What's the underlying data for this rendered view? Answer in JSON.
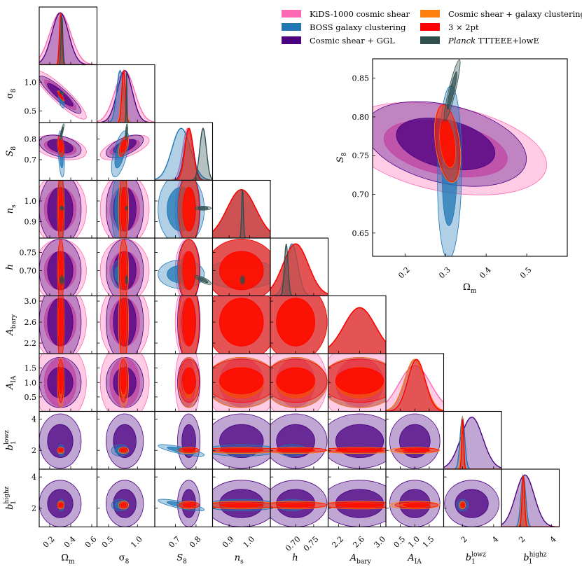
{
  "chart_data": {
    "type": "corner",
    "legend": {
      "placement": "top-right",
      "entries": [
        {
          "label": "KiDS-1000 cosmic shear",
          "color": "#ff69b4"
        },
        {
          "label": "Cosmic shear + galaxy clustering",
          "color": "#ff7f0e"
        },
        {
          "label": "BOSS galaxy clustering",
          "color": "#1f77b4"
        },
        {
          "label": "3 × 2pt",
          "color": "#ff0000"
        },
        {
          "label": "Cosmic shear + GGL",
          "color": "#4b0082"
        },
        {
          "label": "Planck TTTEEE+lowE",
          "color": "#2f4f4f",
          "italic_prefix": "Planck",
          "suffix": " TTTEEE+lowE"
        }
      ]
    },
    "parameters": [
      {
        "key": "Om",
        "label_base": "Ω",
        "label_sub": "m",
        "range": [
          0.1,
          0.65
        ],
        "ticks": [
          0.2,
          0.4,
          0.6
        ],
        "tick_labels": [
          "0.2",
          "0.4",
          "0.6"
        ]
      },
      {
        "key": "s8",
        "label_base": "σ",
        "label_sub": "8",
        "range": [
          0.3,
          1.3
        ],
        "ticks": [
          0.5,
          1.0
        ],
        "tick_labels": [
          "0.5",
          "1.0"
        ]
      },
      {
        "key": "S8",
        "label_base": "S",
        "label_sub": "8",
        "range": [
          0.6,
          0.88
        ],
        "ticks": [
          0.7,
          0.8
        ],
        "tick_labels": [
          "0.7",
          "0.8"
        ]
      },
      {
        "key": "ns",
        "label_base": "n",
        "label_sub": "s",
        "range": [
          0.82,
          1.1
        ],
        "ticks": [
          0.9,
          1.0
        ],
        "tick_labels": [
          "0.9",
          "1.0"
        ]
      },
      {
        "key": "h",
        "label_base": "h",
        "label_sub": "",
        "range": [
          0.63,
          0.79
        ],
        "ticks": [
          0.7,
          0.75
        ],
        "tick_labels": [
          "0.70",
          "0.75"
        ]
      },
      {
        "key": "Abary",
        "label_base": "A",
        "label_sub": "bary",
        "range": [
          2.0,
          3.1
        ],
        "ticks": [
          2.2,
          2.6,
          3.0
        ],
        "tick_labels": [
          "2.2",
          "2.6",
          "3.0"
        ]
      },
      {
        "key": "AIA",
        "label_base": "A",
        "label_sub": "IA",
        "range": [
          0.0,
          2.0
        ],
        "ticks": [
          0.5,
          1.0,
          1.5
        ],
        "tick_labels": [
          "0.5",
          "1.0",
          "1.5"
        ]
      },
      {
        "key": "b1lowz",
        "label_base": "b",
        "label_sub": "1",
        "label_sup": "lowz",
        "range": [
          0.8,
          4.5
        ],
        "ticks": [
          2,
          4
        ],
        "tick_labels": [
          "2",
          "4"
        ]
      },
      {
        "key": "b1highz",
        "label_base": "b",
        "label_sub": "1",
        "label_sup": "highz",
        "range": [
          0.8,
          4.5
        ],
        "ticks": [
          2,
          4
        ],
        "tick_labels": [
          "2",
          "4"
        ]
      }
    ],
    "series": [
      {
        "name": "KiDS-1000 cosmic shear",
        "color": "#ff69b4",
        "mean": {
          "Om": 0.3,
          "s8": 0.78,
          "S8": 0.759,
          "ns": 0.96,
          "h": 0.7,
          "Abary": 2.6,
          "AIA": 1.0
        },
        "sigma": {
          "Om": 0.1,
          "s8": 0.17,
          "S8": 0.024,
          "ns": 0.07,
          "h": 0.035,
          "Abary": 0.3,
          "AIA": 0.55
        }
      },
      {
        "name": "BOSS galaxy clustering",
        "color": "#1f77b4",
        "mean": {
          "Om": 0.31,
          "s8": 0.7,
          "S8": 0.728,
          "ns": 0.96,
          "h": 0.69,
          "b1lowz": 2.0,
          "b1highz": 2.2
        },
        "sigma": {
          "Om": 0.012,
          "s8": 0.06,
          "S8": 0.045,
          "ns": 0.07,
          "h": 0.016,
          "b1lowz": 0.15,
          "b1highz": 0.15
        }
      },
      {
        "name": "Cosmic shear + GGL",
        "color": "#4b0082",
        "mean": {
          "Om": 0.3,
          "s8": 0.78,
          "S8": 0.765,
          "ns": 0.96,
          "h": 0.7,
          "Abary": 2.6,
          "AIA": 1.0,
          "b1lowz": 2.6,
          "b1highz": 2.3
        },
        "sigma": {
          "Om": 0.08,
          "s8": 0.13,
          "S8": 0.022,
          "ns": 0.07,
          "h": 0.035,
          "Abary": 0.3,
          "AIA": 0.35,
          "b1lowz": 0.7,
          "b1highz": 0.6
        }
      },
      {
        "name": "Cosmic shear + galaxy clustering",
        "color": "#ff7f0e",
        "mean": {
          "Om": 0.305,
          "s8": 0.76,
          "S8": 0.765,
          "ns": 0.96,
          "h": 0.7,
          "Abary": 2.6,
          "AIA": 1.0,
          "b1lowz": 2.0,
          "b1highz": 2.2
        },
        "sigma": {
          "Om": 0.013,
          "s8": 0.035,
          "S8": 0.02,
          "ns": 0.07,
          "h": 0.035,
          "Abary": 0.3,
          "AIA": 0.35,
          "b1lowz": 0.08,
          "b1highz": 0.1
        }
      },
      {
        "name": "3 × 2pt",
        "color": "#ff0000",
        "mean": {
          "Om": 0.305,
          "s8": 0.76,
          "S8": 0.766,
          "ns": 0.96,
          "h": 0.7,
          "Abary": 2.6,
          "AIA": 1.06,
          "b1lowz": 2.02,
          "b1highz": 2.2
        },
        "sigma": {
          "Om": 0.012,
          "s8": 0.03,
          "S8": 0.02,
          "ns": 0.07,
          "h": 0.035,
          "Abary": 0.3,
          "AIA": 0.3,
          "b1lowz": 0.06,
          "b1highz": 0.08
        }
      },
      {
        "name": "Planck TTTEEE+lowE",
        "color": "#2f4f4f",
        "mean": {
          "Om": 0.316,
          "s8": 0.811,
          "S8": 0.834,
          "ns": 0.965,
          "h": 0.674
        },
        "sigma": {
          "Om": 0.008,
          "s8": 0.006,
          "S8": 0.016,
          "ns": 0.004,
          "h": 0.005
        }
      }
    ],
    "inset": {
      "x_param": "Om",
      "y_param": "S8",
      "xlim": [
        0.12,
        0.6
      ],
      "ylim": [
        0.62,
        0.875
      ],
      "xticks": [
        0.2,
        0.3,
        0.4,
        0.5
      ],
      "xtick_labels": [
        "0.2",
        "0.3",
        "0.4",
        "0.5"
      ],
      "yticks": [
        0.65,
        0.7,
        0.75,
        0.8,
        0.85
      ],
      "ytick_labels": [
        "0.65",
        "0.70",
        "0.75",
        "0.80",
        "0.85"
      ],
      "xlabel_base": "Ω",
      "xlabel_sub": "m",
      "ylabel_base": "S",
      "ylabel_sub": "8"
    }
  }
}
